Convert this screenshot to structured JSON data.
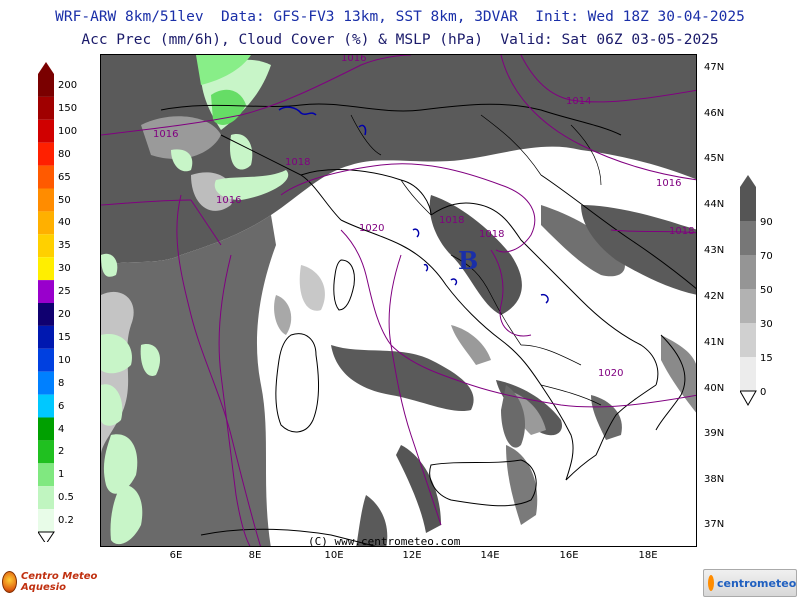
{
  "header": {
    "line1": "WRF-ARW 8km/51lev  Data: GFS-FV3 13km, SST 8km, 3DVAR  Init: Wed 18Z 30-04-2025",
    "line2": "Acc Prec (mm/6h), Cloud Cover (%) & MSLP (hPa)  Valid: Sat 06Z 03-05-2025"
  },
  "map": {
    "lat_labels": [
      "47N",
      "46N",
      "45N",
      "44N",
      "43N",
      "42N",
      "41N",
      "40N",
      "39N",
      "38N",
      "37N"
    ],
    "lon_labels": [
      "6E",
      "8E",
      "10E",
      "12E",
      "14E",
      "16E",
      "18E"
    ],
    "isobar_labels": [
      "1016",
      "1014",
      "1016",
      "1016",
      "1016",
      "1018",
      "1018",
      "1018",
      "1018",
      "1020",
      "1020"
    ],
    "low_marker": "B",
    "colors": {
      "cloud_dark": "#555555",
      "cloud_mid": "#8c8c8c",
      "cloud_light": "#c2c2c2",
      "precip_light": "#c8f5c8",
      "precip_green": "#66dd66",
      "isobar": "#800080",
      "coast": "#000000",
      "lakes": "#0000aa"
    }
  },
  "precip_legend": {
    "labels": [
      "200",
      "150",
      "100",
      "80",
      "65",
      "50",
      "40",
      "35",
      "30",
      "25",
      "20",
      "15",
      "10",
      "8",
      "6",
      "4",
      "2",
      "1",
      "0.5",
      "0.2"
    ],
    "colors": [
      "#7a0000",
      "#a00000",
      "#d00000",
      "#ff2000",
      "#ff5a00",
      "#ff8c00",
      "#ffb000",
      "#ffd000",
      "#ffee00",
      "#9900cc",
      "#100070",
      "#0018b0",
      "#0040e0",
      "#0080ff",
      "#00c8ff",
      "#00a000",
      "#20c020",
      "#80e880",
      "#c0f5c0",
      "#e8fce8"
    ]
  },
  "cloud_legend": {
    "labels": [
      "90",
      "70",
      "50",
      "30",
      "15",
      "0"
    ],
    "colors": [
      "#555555",
      "#777777",
      "#959595",
      "#b2b2b2",
      "#d0d0d0",
      "#ececec"
    ]
  },
  "footer": {
    "copyright": "(C) www.centrometeo.com",
    "logo_left": "Centro Meteo Aquesio",
    "logo_right": "centrometeo"
  }
}
